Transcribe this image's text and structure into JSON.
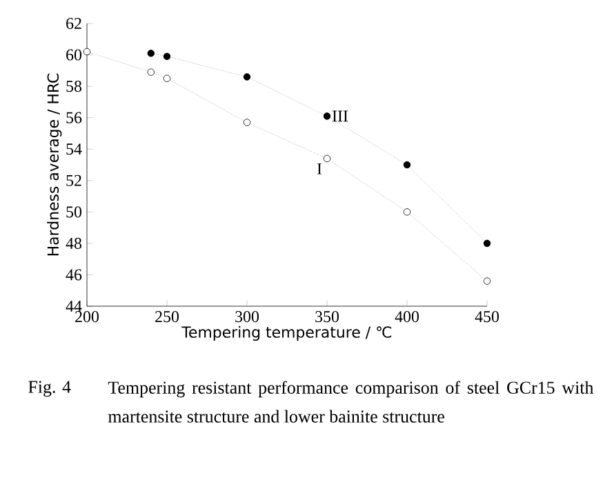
{
  "chart_data": {
    "type": "line",
    "xlabel": "Tempering temperature / ℃",
    "ylabel": "Hardness average / HRC",
    "series": [
      {
        "name": "I",
        "color": "#ffffff",
        "x": [
          200,
          240,
          250,
          300,
          350,
          400,
          450
        ],
        "values": [
          60.2,
          58.9,
          58.5,
          55.7,
          53.4,
          50.0,
          45.6
        ]
      },
      {
        "name": "III",
        "color": "#000000",
        "x": [
          240,
          250,
          300,
          350,
          400,
          450
        ],
        "values": [
          60.1,
          59.9,
          58.6,
          56.1,
          53.0,
          48.0
        ]
      }
    ],
    "xlim": [
      200,
      450
    ],
    "xticks": [
      200,
      250,
      300,
      350,
      400,
      450
    ],
    "ylim": [
      44,
      62
    ],
    "yticks": [
      44,
      46,
      48,
      50,
      52,
      54,
      56,
      58,
      60,
      62
    ],
    "marker": "circle",
    "line_style": "dotted",
    "grid": false,
    "annotations": [
      "Fig. 4",
      "Tempering resistant performance comparison of steel GCr15 with martensite structure and lower bainite structure"
    ]
  }
}
